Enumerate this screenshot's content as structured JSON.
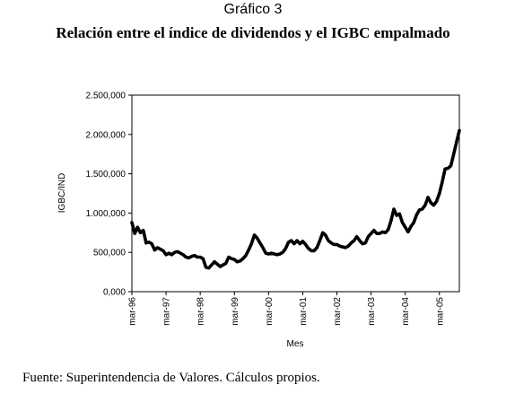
{
  "header": {
    "label": "Gráfico 3",
    "title": "Relación entre el índice de dividendos y el IGBC empalmado"
  },
  "footer": {
    "source": "Fuente: Superintendencia de Valores. Cálculos propios."
  },
  "chart_data": {
    "type": "line",
    "title": "Relación entre el índice de dividendos y el IGBC empalmado",
    "xlabel": "Mes",
    "ylabel": "IGBC/IND",
    "ylim": [
      0,
      2500000
    ],
    "yticks": [
      0,
      500000,
      1000000,
      1500000,
      2000000,
      2500000
    ],
    "ytick_labels": [
      "0,000",
      "500,000",
      "1.000,000",
      "1.500,000",
      "2.000,000",
      "2.500,000"
    ],
    "xticks": [
      "1996-03",
      "1997-03",
      "1998-03",
      "1999-03",
      "2000-03",
      "2001-03",
      "2002-03",
      "2003-03",
      "2004-03",
      "2005-03"
    ],
    "xtick_labels": [
      "mar-96",
      "mar-97",
      "mar-98",
      "mar-99",
      "mar-00",
      "mar-01",
      "mar-02",
      "mar-03",
      "mar-04",
      "mar-05"
    ],
    "xlim": [
      "1996-03",
      "2005-10"
    ],
    "grid": false,
    "legend": "none",
    "line_color": "#000000",
    "series": [
      {
        "x": [
          "1996-03",
          "1996-04",
          "1996-05",
          "1996-06",
          "1996-07",
          "1996-08",
          "1996-09",
          "1996-10",
          "1996-11",
          "1996-12",
          "1997-01",
          "1997-02",
          "1997-03",
          "1997-04",
          "1997-05",
          "1997-06",
          "1997-07",
          "1997-08",
          "1997-09",
          "1997-10",
          "1997-11",
          "1997-12",
          "1998-01",
          "1998-02",
          "1998-03",
          "1998-04",
          "1998-05",
          "1998-06",
          "1998-07",
          "1998-08",
          "1998-09",
          "1998-10",
          "1998-11",
          "1998-12",
          "1999-01",
          "1999-02",
          "1999-03",
          "1999-04",
          "1999-05",
          "1999-06",
          "1999-07",
          "1999-08",
          "1999-09",
          "1999-10",
          "1999-11",
          "1999-12",
          "2000-01",
          "2000-02",
          "2000-03",
          "2000-04",
          "2000-05",
          "2000-06",
          "2000-07",
          "2000-08",
          "2000-09",
          "2000-10",
          "2000-11",
          "2000-12",
          "2001-01",
          "2001-02",
          "2001-03",
          "2001-04",
          "2001-05",
          "2001-06",
          "2001-07",
          "2001-08",
          "2001-09",
          "2001-10",
          "2001-11",
          "2001-12",
          "2002-01",
          "2002-02",
          "2002-03",
          "2002-04",
          "2002-05",
          "2002-06",
          "2002-07",
          "2002-08",
          "2002-09",
          "2002-10",
          "2002-11",
          "2002-12",
          "2003-01",
          "2003-02",
          "2003-03",
          "2003-04",
          "2003-05",
          "2003-06",
          "2003-07",
          "2003-08",
          "2003-09",
          "2003-10",
          "2003-11",
          "2003-12",
          "2004-01",
          "2004-02",
          "2004-03",
          "2004-04",
          "2004-05",
          "2004-06",
          "2004-07",
          "2004-08",
          "2004-09",
          "2004-10",
          "2004-11",
          "2004-12",
          "2005-01",
          "2005-02",
          "2005-03",
          "2005-04",
          "2005-05",
          "2005-06",
          "2005-07",
          "2005-08",
          "2005-09",
          "2005-10"
        ],
        "values": [
          880000,
          740000,
          820000,
          750000,
          780000,
          620000,
          630000,
          610000,
          530000,
          560000,
          540000,
          520000,
          470000,
          490000,
          470000,
          500000,
          510000,
          490000,
          470000,
          440000,
          430000,
          450000,
          460000,
          440000,
          440000,
          420000,
          310000,
          300000,
          340000,
          380000,
          350000,
          320000,
          340000,
          360000,
          440000,
          420000,
          410000,
          380000,
          390000,
          420000,
          460000,
          530000,
          610000,
          720000,
          680000,
          620000,
          560000,
          490000,
          480000,
          490000,
          480000,
          470000,
          480000,
          500000,
          550000,
          630000,
          650000,
          610000,
          650000,
          610000,
          640000,
          600000,
          550000,
          520000,
          520000,
          560000,
          650000,
          750000,
          720000,
          650000,
          620000,
          600000,
          600000,
          580000,
          570000,
          560000,
          580000,
          620000,
          650000,
          700000,
          650000,
          610000,
          620000,
          700000,
          740000,
          780000,
          740000,
          740000,
          760000,
          750000,
          790000,
          900000,
          1050000,
          970000,
          990000,
          880000,
          820000,
          760000,
          830000,
          880000,
          980000,
          1040000,
          1050000,
          1100000,
          1200000,
          1130000,
          1100000,
          1150000,
          1250000,
          1400000,
          1560000,
          1570000,
          1600000,
          1750000,
          1900000,
          2050000
        ]
      }
    ]
  }
}
